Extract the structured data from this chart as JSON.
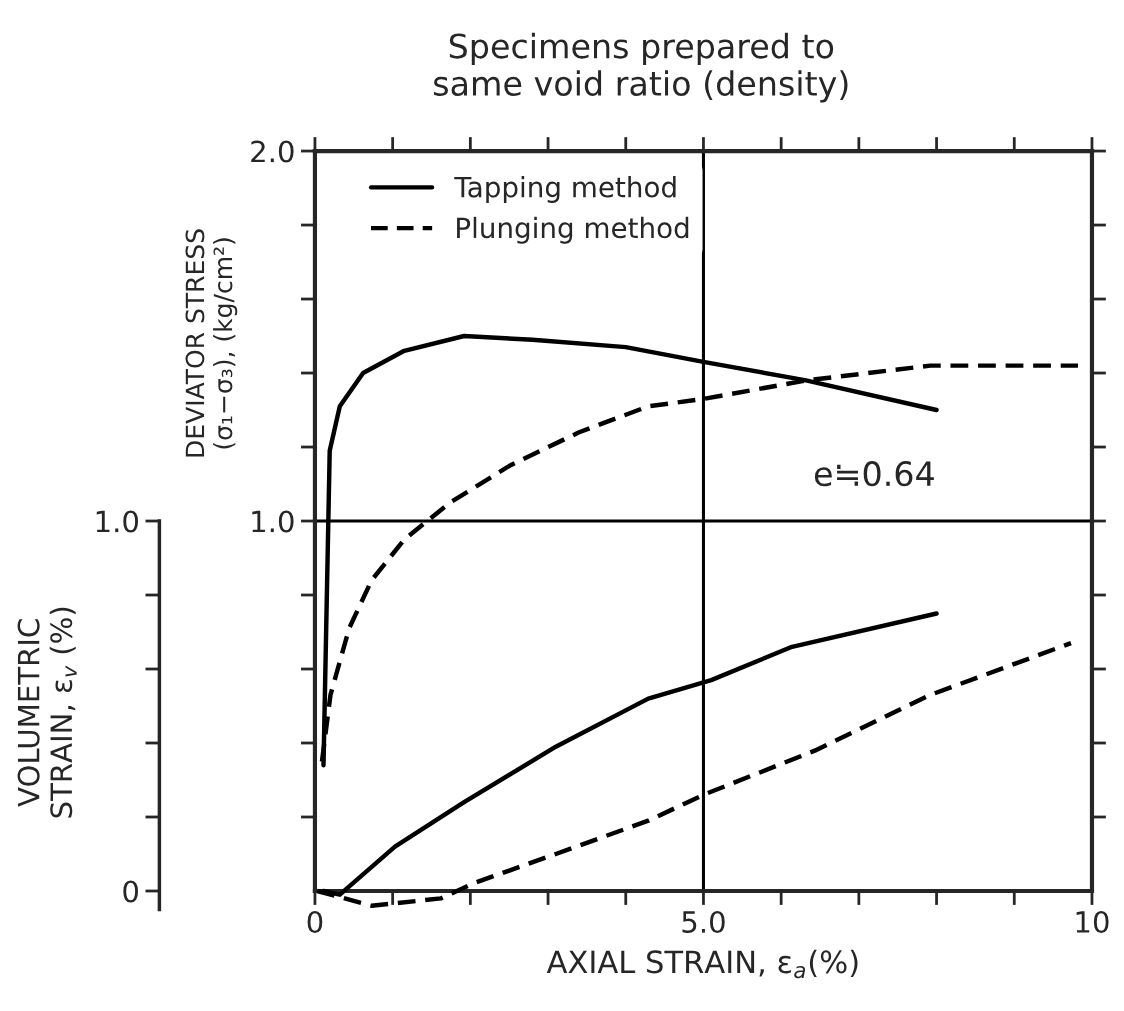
{
  "chart_data": {
    "type": "line",
    "title": "Specimens prepared to\nsame void ratio (density)",
    "xlabel": "AXIAL STRAIN, ε$_{a}$(%)",
    "ylabel": "DEVIATOR STRESS\n(σ₁−σ₃), (kg/cm²)",
    "y2label": "VOLUMETRIC\nSTRAIN, ε$_{v}$ (%)",
    "annotations": [
      "e≒0.64"
    ],
    "xlim": [
      0,
      10
    ],
    "xticks": [
      0,
      {
        "value": 1,
        "label": null
      },
      {
        "value": 2,
        "label": null
      },
      {
        "value": 3,
        "label": null
      },
      {
        "value": 4,
        "label": null
      },
      {
        "value": 5,
        "label": "5.0"
      },
      {
        "value": 6,
        "label": null
      },
      {
        "value": 7,
        "label": null
      },
      {
        "value": 8,
        "label": null
      },
      {
        "value": 9,
        "label": null
      },
      10
    ],
    "ylim": [
      0,
      2.0
    ],
    "yticks": [
      {
        "value": 0.2,
        "label": null
      },
      {
        "value": 0.4,
        "label": null
      },
      {
        "value": 0.6,
        "label": null
      },
      {
        "value": 0.8,
        "label": null
      },
      {
        "value": 1.0,
        "label": "1.0"
      },
      {
        "value": 1.2,
        "label": null
      },
      {
        "value": 1.4,
        "label": null
      },
      {
        "value": 1.6,
        "label": null
      },
      {
        "value": 1.8,
        "label": null
      },
      {
        "value": 2.0,
        "label": "2.0"
      }
    ],
    "y2lim": [
      -0.05,
      2.0
    ],
    "y2ticks": [
      0,
      {
        "value": 0.2,
        "label": null
      },
      {
        "value": 0.4,
        "label": null
      },
      {
        "value": 0.6,
        "label": null
      },
      {
        "value": 0.8,
        "label": null
      },
      {
        "value": 1.0,
        "label": "1.0"
      }
    ],
    "ref_lines": [
      {
        "axis": "y",
        "value": 1.0,
        "color": "#000000"
      },
      {
        "axis": "x",
        "value": 5.0,
        "color": "#000000"
      }
    ],
    "legend": "top left",
    "grid": false,
    "series": [
      {
        "name": "Tapping method",
        "color": "#000000",
        "line_style": "solid",
        "x": [
          0.11,
          0.19,
          0.32,
          0.62,
          1.15,
          1.92,
          2.8,
          4.0,
          5.0,
          6.32,
          8.0
        ],
        "values": [
          0.34,
          1.19,
          1.31,
          1.4,
          1.46,
          1.5,
          1.49,
          1.47,
          1.43,
          1.38,
          1.3
        ]
      },
      {
        "name": "Plunging method",
        "color": "#000000",
        "line_style": "dashed",
        "x": [
          0.09,
          0.2,
          0.44,
          0.73,
          1.15,
          1.74,
          2.51,
          3.4,
          4.29,
          5.0,
          6.32,
          7.92,
          9.82
        ],
        "values": [
          0.35,
          0.53,
          0.71,
          0.84,
          0.95,
          1.05,
          1.15,
          1.24,
          1.31,
          1.33,
          1.38,
          1.42,
          1.42
        ]
      },
      {
        "color": "#000000",
        "line_style": "solid",
        "axis": "y2",
        "x": [
          0.11,
          0.32,
          1.03,
          1.92,
          3.1,
          4.29,
          5.1,
          6.14,
          8.0
        ],
        "values": [
          0.0,
          -0.01,
          0.12,
          0.24,
          0.39,
          0.52,
          0.57,
          0.66,
          0.75
        ]
      },
      {
        "color": "#000000",
        "line_style": "dashed",
        "axis": "y2",
        "x": [
          0.03,
          0.73,
          1.62,
          2.03,
          3.1,
          4.29,
          5.0,
          6.44,
          7.92,
          9.73
        ],
        "values": [
          0.0,
          -0.04,
          -0.02,
          0.02,
          0.1,
          0.19,
          0.26,
          0.38,
          0.53,
          0.67
        ]
      }
    ]
  }
}
